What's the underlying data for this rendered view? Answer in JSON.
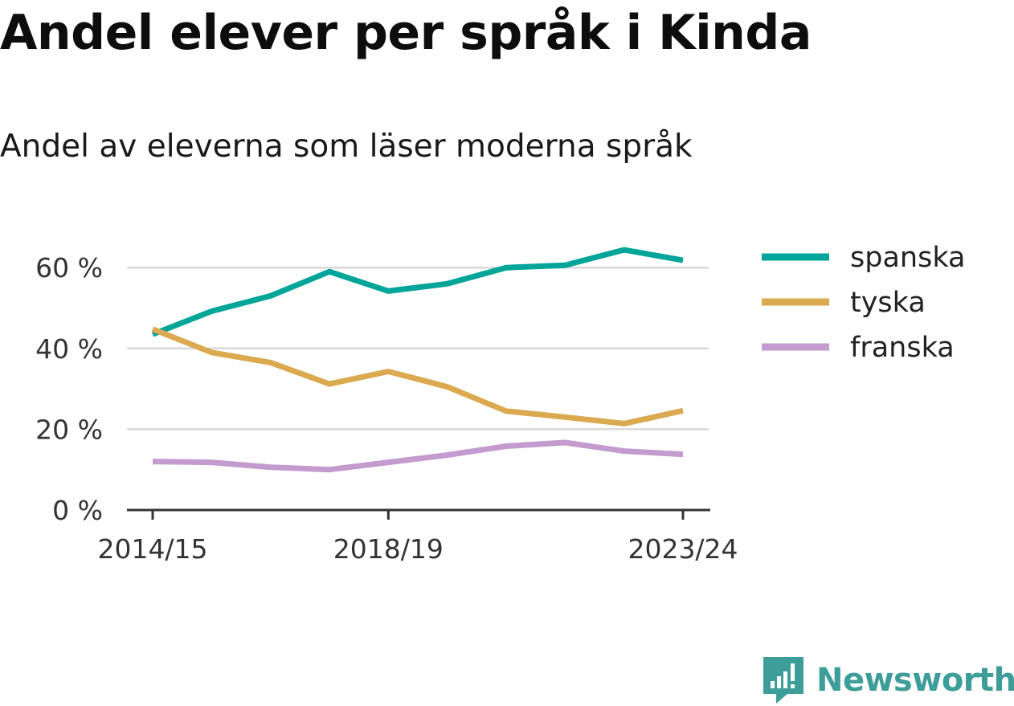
{
  "title": "Andel elever per språk i Kinda",
  "subtitle": "Andel av eleverna som läser moderna språk",
  "brand": {
    "name": "Newsworthy",
    "color": "#3d9d98",
    "icon": "newsworthy-logo-icon"
  },
  "chart_data": {
    "type": "line",
    "title": "Andel elever per språk i Kinda",
    "subtitle": "Andel av eleverna som läser moderna språk",
    "xlabel": "",
    "ylabel": "",
    "x": [
      "2014/15",
      "2015/16",
      "2016/17",
      "2017/18",
      "2018/19",
      "2019/20",
      "2020/21",
      "2021/22",
      "2022/23",
      "2023/24"
    ],
    "x_tick_labels": [
      "2014/15",
      "2018/19",
      "2023/24"
    ],
    "y_tick_labels": [
      "0 %",
      "20 %",
      "40 %",
      "60 %"
    ],
    "y_ticks": [
      0,
      20,
      40,
      60
    ],
    "ylim": [
      0,
      70
    ],
    "grid": true,
    "legend_position": "right",
    "series": [
      {
        "name": "spanska",
        "color": "#00a59a",
        "values": [
          43.5,
          49.2,
          53,
          59,
          54.2,
          56,
          60,
          60.6,
          64.4,
          61.8
        ]
      },
      {
        "name": "tyska",
        "color": "#daa950",
        "values": [
          44.8,
          39,
          36.5,
          31.2,
          34.3,
          30.5,
          24.5,
          23,
          21.4,
          24.6
        ]
      },
      {
        "name": "franska",
        "color": "#c39bcf",
        "values": [
          12,
          11.8,
          10.6,
          10,
          11.8,
          13.6,
          15.8,
          16.7,
          14.6,
          13.8
        ]
      }
    ]
  }
}
